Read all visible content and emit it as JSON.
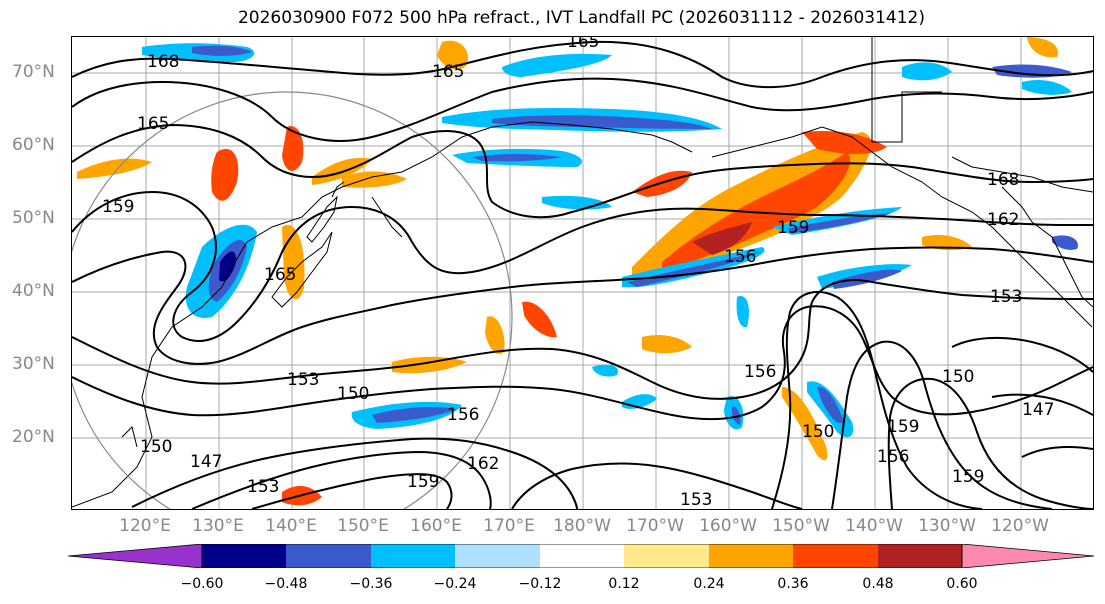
{
  "title": "2026030900 F072 500 hPa refract., IVT Landfall PC (2026031112 - 2026031412)",
  "lat_labels": [
    "70°N",
    "60°N",
    "50°N",
    "40°N",
    "30°N",
    "20°N"
  ],
  "lon_labels": [
    "120°E",
    "130°E",
    "140°E",
    "150°E",
    "160°E",
    "170°E",
    "180°W",
    "170°W",
    "160°W",
    "150°W",
    "140°W",
    "130°W",
    "120°W"
  ],
  "colorbar": {
    "ticks": [
      "−0.60",
      "−0.48",
      "−0.36",
      "−0.24",
      "−0.12",
      "0.12",
      "0.24",
      "0.36",
      "0.48",
      "0.60"
    ],
    "colors": [
      "#9932cc",
      "#00008b",
      "#3b5bcc",
      "#00bfff",
      "#b0e0ff",
      "#ffffff",
      "#ffe98a",
      "#ffa500",
      "#ff4500",
      "#b22222",
      "#ff88b0"
    ]
  },
  "contour_labels": [
    "165",
    "168",
    "165",
    "165",
    "159",
    "165",
    "168",
    "162",
    "159",
    "156",
    "153",
    "153",
    "150",
    "147",
    "156",
    "162",
    "159",
    "153",
    "156",
    "150",
    "159",
    "156",
    "150",
    "147",
    "159",
    "150",
    "153"
  ]
}
